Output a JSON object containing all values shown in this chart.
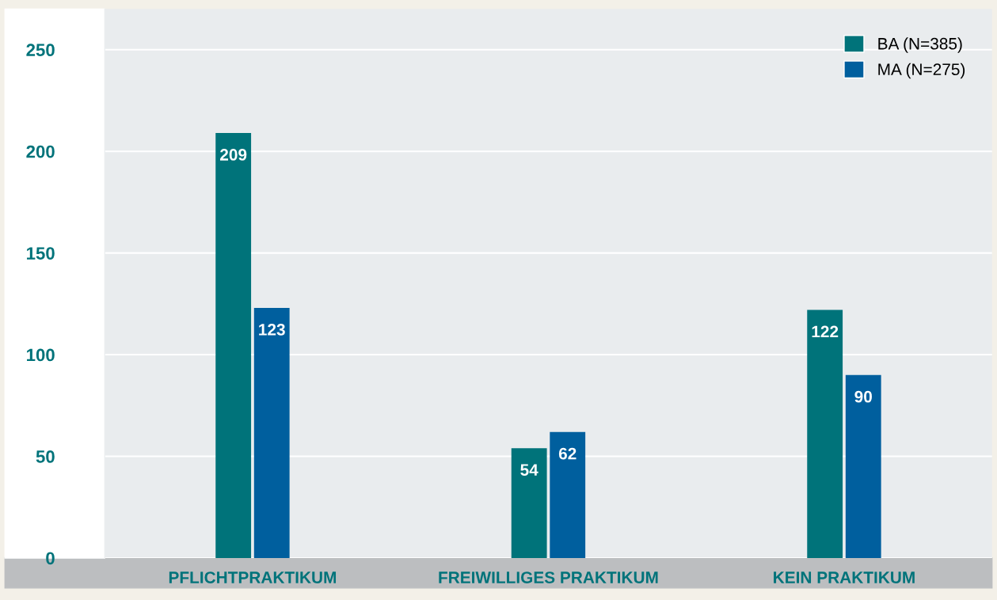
{
  "chart_data": {
    "type": "bar",
    "categories": [
      "PFLICHTPRAKTIKUM",
      "FREIWILLIGES PRAKTIKUM",
      "KEIN PRAKTIKUM"
    ],
    "series": [
      {
        "name": "BA (N=385)",
        "color": "#00737a",
        "values": [
          209,
          54,
          122
        ]
      },
      {
        "name": "MA (N=275)",
        "color": "#005f9e",
        "values": [
          123,
          62,
          90
        ]
      }
    ],
    "ylim": [
      0,
      270
    ],
    "yticks": [
      0,
      50,
      100,
      150,
      200,
      250
    ],
    "data_labels": true,
    "grid": "y",
    "legend": "top right"
  }
}
